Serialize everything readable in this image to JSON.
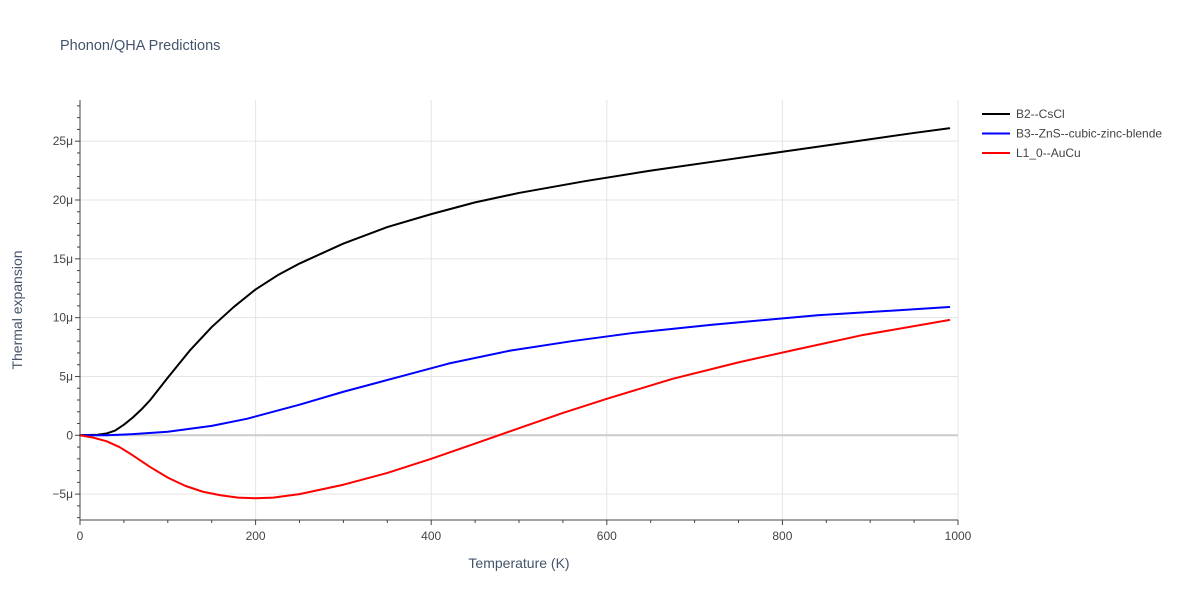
{
  "chart_data": {
    "type": "line",
    "title": "Phonon/QHA Predictions",
    "xlabel": "Temperature (K)",
    "ylabel": "Thermal expansion",
    "xlim": [
      0,
      1000
    ],
    "ylim": [
      -7.2e-06,
      2.85e-05
    ],
    "x_ticks": [
      0,
      200,
      400,
      600,
      800,
      1000
    ],
    "x_tick_labels": [
      "0",
      "200",
      "400",
      "600",
      "800",
      "1000"
    ],
    "y_ticks": [
      -5e-06,
      0,
      5e-06,
      1e-05,
      1.5e-05,
      2e-05,
      2.5e-05
    ],
    "y_tick_labels": [
      "−5μ",
      "0",
      "5μ",
      "10μ",
      "15μ",
      "20μ",
      "25μ"
    ],
    "grid": true,
    "legend_position": "top-right",
    "series": [
      {
        "name": "B2--CsCl",
        "color": "#000000",
        "x": [
          0,
          20,
          30,
          40,
          50,
          60,
          70,
          80,
          100,
          125,
          150,
          175,
          200,
          225,
          250,
          300,
          350,
          400,
          450,
          500,
          575,
          650,
          725,
          800,
          875,
          950,
          990
        ],
        "y": [
          0,
          5e-08,
          1.5e-07,
          4e-07,
          9e-07,
          1.5e-06,
          2.2e-06,
          3e-06,
          4.9e-06,
          7.2e-06,
          9.2e-06,
          1.09e-05,
          1.24e-05,
          1.36e-05,
          1.46e-05,
          1.63e-05,
          1.77e-05,
          1.88e-05,
          1.98e-05,
          2.06e-05,
          2.16e-05,
          2.25e-05,
          2.33e-05,
          2.41e-05,
          2.49e-05,
          2.57e-05,
          2.61e-05
        ]
      },
      {
        "name": "B3--ZnS--cubic-zinc-blende",
        "color": "#0000ff",
        "x": [
          0,
          30,
          60,
          100,
          150,
          190,
          250,
          300,
          370,
          420,
          490,
          560,
          630,
          720,
          840,
          990
        ],
        "y": [
          0,
          0.0,
          1e-07,
          3e-07,
          8e-07,
          1.4e-06,
          2.6e-06,
          3.7e-06,
          5.1e-06,
          6.1e-06,
          7.2e-06,
          8e-06,
          8.7e-06,
          9.4e-06,
          1.02e-05,
          1.09e-05
        ]
      },
      {
        "name": "L1_0--AuCu",
        "color": "#ff0000",
        "x": [
          0,
          15,
          30,
          45,
          60,
          80,
          100,
          120,
          140,
          160,
          180,
          200,
          220,
          250,
          300,
          350,
          400,
          450,
          500,
          550,
          600,
          675,
          750,
          810,
          890,
          990
        ],
        "y": [
          0,
          -2e-07,
          -5e-07,
          -1e-06,
          -1.7e-06,
          -2.7e-06,
          -3.6e-06,
          -4.3e-06,
          -4.8e-06,
          -5.1e-06,
          -5.3e-06,
          -5.35e-06,
          -5.3e-06,
          -5e-06,
          -4.2e-06,
          -3.2e-06,
          -2e-06,
          -7e-07,
          6e-07,
          1.9e-06,
          3.1e-06,
          4.8e-06,
          6.2e-06,
          7.2e-06,
          8.5e-06,
          9.8e-06
        ]
      }
    ]
  }
}
